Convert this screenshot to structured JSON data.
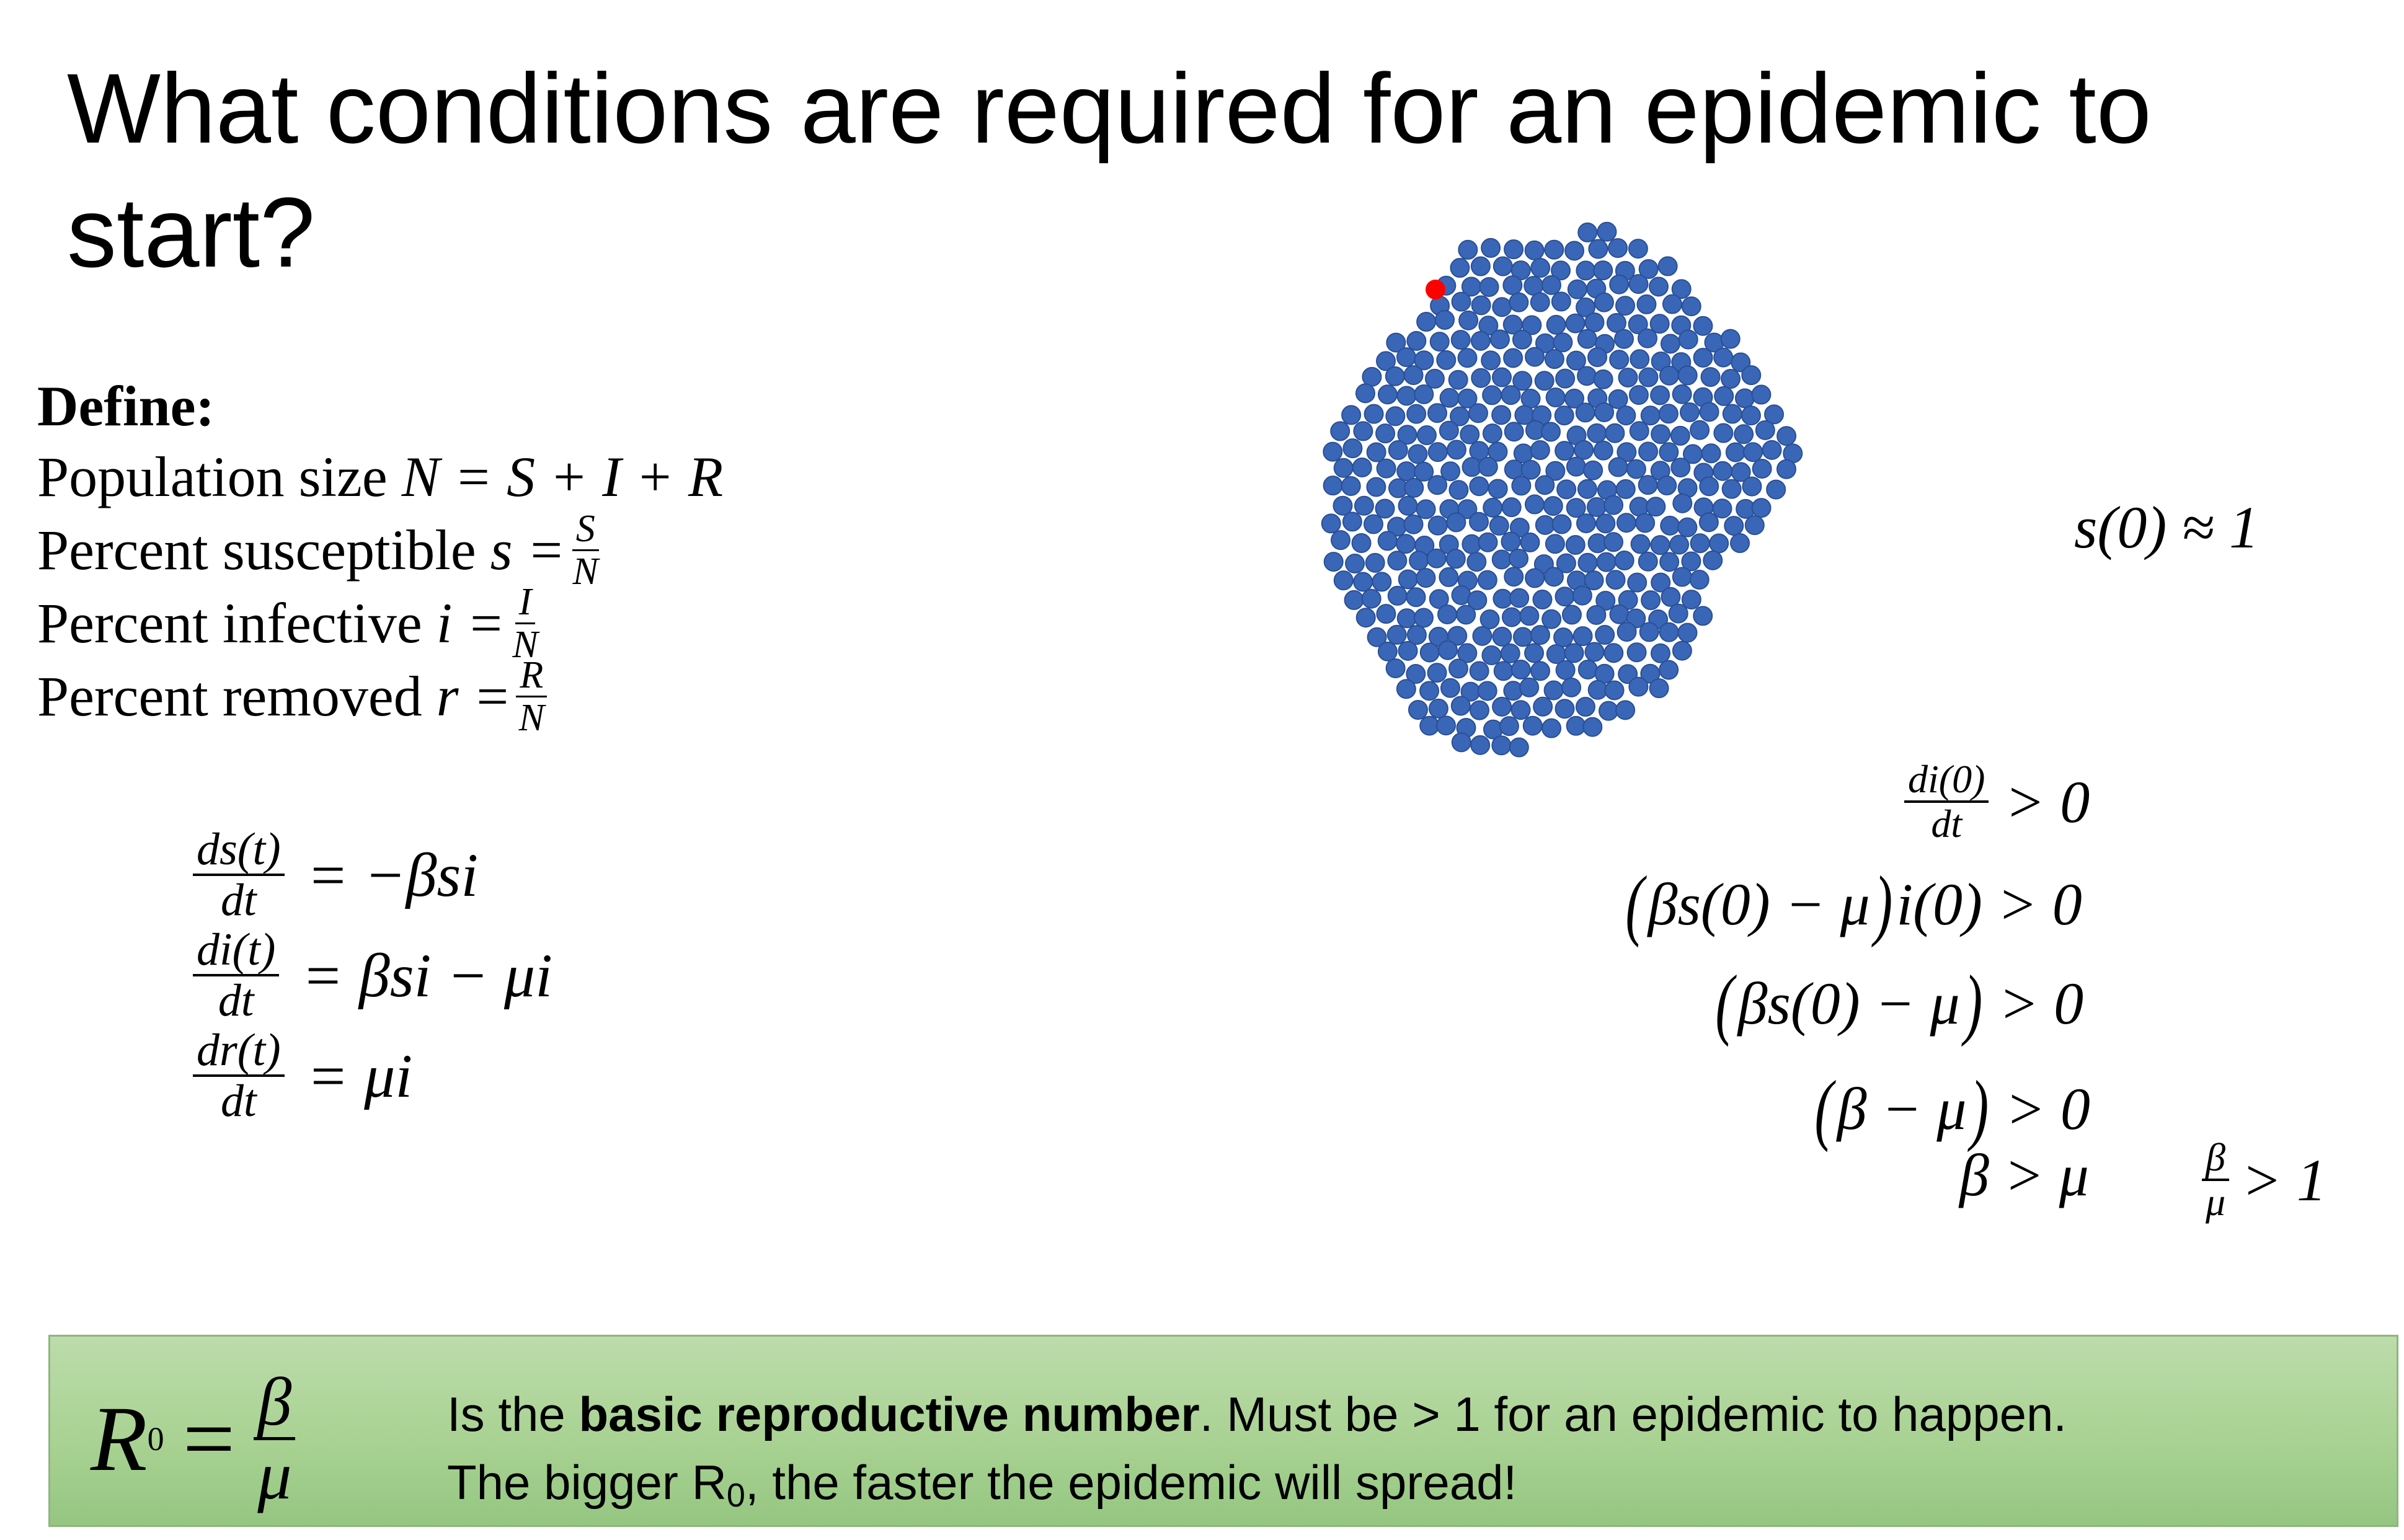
{
  "title": {
    "line1": "What conditions are required for an epidemic to",
    "line2": "start?"
  },
  "definitions": {
    "heading": "Define:",
    "population_label": "Population size",
    "population_formula": "N = S + I + R",
    "susceptible_label": "Percent susceptible",
    "susceptible_var": "s =",
    "susceptible_num": "S",
    "susceptible_den": "N",
    "infective_label": "Percent infective",
    "infective_var": "i =",
    "infective_num": "I",
    "infective_den": "N",
    "removed_label": "Percent removed",
    "removed_var": "r =",
    "removed_num": "R",
    "removed_den": "N"
  },
  "equations": [
    {
      "num": "ds(t)",
      "den": "dt",
      "rhs": "= −βsi"
    },
    {
      "num": "di(t)",
      "den": "dt",
      "rhs": "= βsi − μi"
    },
    {
      "num": "dr(t)",
      "den": "dt",
      "rhs": "= μi"
    }
  ],
  "population": {
    "susceptible_color": "#3a66b8",
    "infected_color": "#ff0000",
    "initial_condition": "s(0) ≈ 1"
  },
  "derivation": {
    "step1_num": "di(0)",
    "step1_den": "dt",
    "step1_rhs": "> 0",
    "step2_inner": "βs(0) − μ",
    "step2_rhs": "i(0) > 0",
    "step3_inner": "βs(0) − μ",
    "step3_rhs": "> 0",
    "step4_inner": "β − μ",
    "step4_rhs": "> 0",
    "step5": "β > μ",
    "step5b_num": "β",
    "step5b_den": "μ",
    "step5b_rhs": "> 1"
  },
  "callout": {
    "bg_color": "#a9d293",
    "r0_symbol": "R",
    "r0_sub": "0",
    "r0_eq": "=",
    "r0_num": "β",
    "r0_den": "μ",
    "line1_pre": "Is the ",
    "line1_bold": "basic reproductive number",
    "line1_post": ". Must be > 1 for an epidemic to happen.",
    "line2_pre": "The bigger R",
    "line2_sub": "0",
    "line2_post": ", the faster the epidemic will spread!"
  }
}
